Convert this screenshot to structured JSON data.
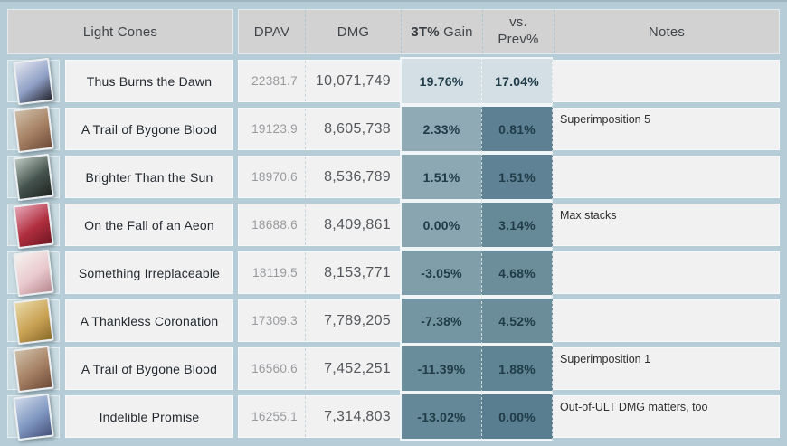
{
  "page": {
    "background": "#b6ccd6",
    "header_bg": "#d2d2d2",
    "cell_bg": "#f1f1f1",
    "icon_cell_bg": "#cadbe2"
  },
  "header": {
    "light_cones": "Light Cones",
    "dpav": "DPAV",
    "dmg": "DMG",
    "gain_bold": "3T%",
    "gain_rest": " Gain",
    "prev_line1": "vs.",
    "prev_line2": "Prev%",
    "notes": "Notes"
  },
  "rows": [
    {
      "name": "Thus Burns the Dawn",
      "dpav": "22381.7",
      "dmg": "10,071,749",
      "gain": "19.76%",
      "prev": "17.04%",
      "note": "",
      "gain_bg": "#d3dfe4",
      "prev_bg": "#d3dfe4",
      "icon": "thus-burns-the-dawn-card",
      "card_colors": [
        "#e3e6ef",
        "#8f9fc6",
        "#26262f"
      ]
    },
    {
      "name": "A Trail of Bygone Blood",
      "dpav": "19123.9",
      "dmg": "8,605,738",
      "gain": "2.33%",
      "prev": "0.81%",
      "note": "Superimposition 5",
      "gain_bg": "#8faab4",
      "prev_bg": "#5d8193",
      "icon": "a-trail-of-bygone-blood-card",
      "card_colors": [
        "#cfc0a9",
        "#a57f62",
        "#6e4a38"
      ]
    },
    {
      "name": "Brighter Than the Sun",
      "dpav": "18970.6",
      "dmg": "8,536,789",
      "gain": "1.51%",
      "prev": "1.51%",
      "note": "",
      "gain_bg": "#8ca8b2",
      "prev_bg": "#5f8394",
      "icon": "brighter-than-the-sun-card",
      "card_colors": [
        "#bcc8c0",
        "#44524d",
        "#1e2420"
      ]
    },
    {
      "name": "On the Fall of an Aeon",
      "dpav": "18688.6",
      "dmg": "8,409,861",
      "gain": "0.00%",
      "prev": "3.14%",
      "note": "Max stacks",
      "gain_bg": "#89a5b0",
      "prev_bg": "#678a98",
      "icon": "on-the-fall-of-an-aeon-card",
      "card_colors": [
        "#e5a7b7",
        "#b02e3e",
        "#701622"
      ]
    },
    {
      "name": "Something Irreplaceable",
      "dpav": "18119.5",
      "dmg": "8,153,771",
      "gain": "-3.05%",
      "prev": "4.68%",
      "note": "",
      "gain_bg": "#7f9eaa",
      "prev_bg": "#6c8e9b",
      "icon": "something-irreplaceable-card",
      "card_colors": [
        "#f6f2ef",
        "#e9c9cd",
        "#b7888f"
      ]
    },
    {
      "name": "A Thankless Coronation",
      "dpav": "17309.3",
      "dmg": "7,789,205",
      "gain": "-7.38%",
      "prev": "4.52%",
      "note": "",
      "gain_bg": "#7495a2",
      "prev_bg": "#6b8d9a",
      "icon": "a-thankless-coronation-card",
      "card_colors": [
        "#ead9a8",
        "#c9a254",
        "#8a6a2c"
      ]
    },
    {
      "name": "A Trail of Bygone Blood",
      "dpav": "16560.6",
      "dmg": "7,452,251",
      "gain": "-11.39%",
      "prev": "1.88%",
      "note": "Superimposition 1",
      "gain_bg": "#6a8d9b",
      "prev_bg": "#5f8494",
      "icon": "a-trail-of-bygone-blood-card",
      "card_colors": [
        "#cfc0a9",
        "#a57f62",
        "#6e4a38"
      ]
    },
    {
      "name": "Indelible Promise",
      "dpav": "16255.1",
      "dmg": "7,314,803",
      "gain": "-13.02%",
      "prev": "0.00%",
      "note": "Out-of-ULT DMG matters, too",
      "gain_bg": "#648897",
      "prev_bg": "#597e90",
      "icon": "indelible-promise-card",
      "card_colors": [
        "#cfd9ea",
        "#7e96c0",
        "#46517a"
      ]
    }
  ]
}
